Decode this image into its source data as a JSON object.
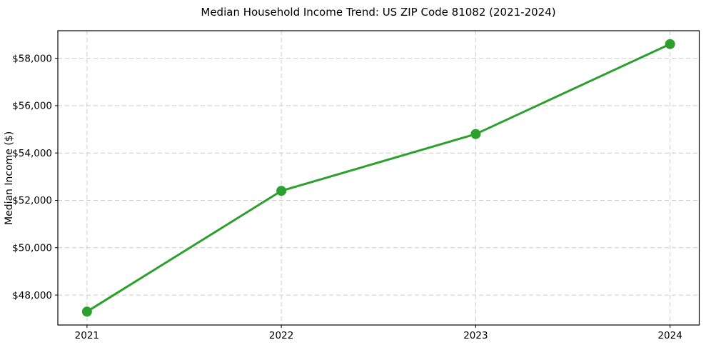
{
  "chart_data": {
    "type": "line",
    "title": "Median Household Income Trend: US ZIP Code 81082 (2021-2024)",
    "xlabel": "",
    "ylabel": "Median Income ($)",
    "x": [
      2021,
      2022,
      2023,
      2024
    ],
    "series": [
      {
        "name": "Median Household Income",
        "values": [
          47300,
          52400,
          54800,
          58600
        ]
      }
    ],
    "xticks": [
      2021,
      2022,
      2023,
      2024
    ],
    "xtick_labels": [
      "2021",
      "2022",
      "2023",
      "2024"
    ],
    "yticks": [
      48000,
      50000,
      52000,
      54000,
      56000,
      58000
    ],
    "ytick_labels": [
      "$48,000",
      "$50,000",
      "$52,000",
      "$54,000",
      "$56,000",
      "$58,000"
    ],
    "xlim": [
      2020.85,
      2024.15
    ],
    "ylim": [
      46735,
      59165
    ],
    "grid": true,
    "legend": "none",
    "colors": {
      "line": "#2ca02c",
      "marker": "#2ca02c",
      "grid": "#cccccc",
      "spine": "#000000",
      "background": "#ffffff"
    },
    "style": {
      "line_width": 3,
      "marker_radius": 7,
      "grid_dash": "6 4",
      "tick_length": 4
    }
  }
}
